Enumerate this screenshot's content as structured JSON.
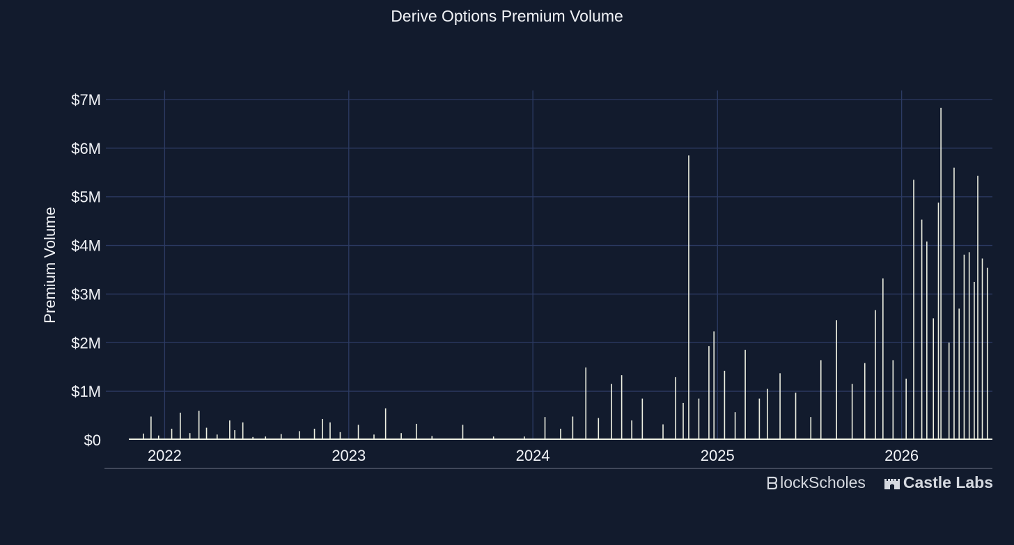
{
  "chart_data": {
    "type": "bar",
    "title": "Derive Options Premium Volume",
    "xlabel": "",
    "ylabel": "Premium Volume",
    "xlim": [
      "2021-10-22",
      "2026-06-30"
    ],
    "ylim": [
      0,
      7200000
    ],
    "yticks": [
      0,
      1000000,
      2000000,
      3000000,
      4000000,
      5000000,
      6000000,
      7000000
    ],
    "ytick_labels": [
      "$0",
      "$1M",
      "$2M",
      "$3M",
      "$4M",
      "$5M",
      "$6M",
      "$7M"
    ],
    "xticks": [
      "2022-01-01",
      "2023-01-01",
      "2024-01-01",
      "2025-01-01",
      "2026-01-01"
    ],
    "xtick_labels": [
      "2022",
      "2023",
      "2024",
      "2025",
      "2026"
    ],
    "grid": true,
    "bar_color": "#eef0e2",
    "series": [
      {
        "values": [
          [
            "2021-11-20",
            130000
          ],
          [
            "2021-12-05",
            480000
          ],
          [
            "2021-12-20",
            90000
          ],
          [
            "2022-01-15",
            230000
          ],
          [
            "2022-02-01",
            560000
          ],
          [
            "2022-02-20",
            140000
          ],
          [
            "2022-03-10",
            600000
          ],
          [
            "2022-03-25",
            250000
          ],
          [
            "2022-04-15",
            110000
          ],
          [
            "2022-05-10",
            400000
          ],
          [
            "2022-05-20",
            200000
          ],
          [
            "2022-06-05",
            360000
          ],
          [
            "2022-06-25",
            60000
          ],
          [
            "2022-07-20",
            70000
          ],
          [
            "2022-08-20",
            120000
          ],
          [
            "2022-09-25",
            180000
          ],
          [
            "2022-10-25",
            230000
          ],
          [
            "2022-11-10",
            430000
          ],
          [
            "2022-11-25",
            360000
          ],
          [
            "2022-12-15",
            160000
          ],
          [
            "2023-01-20",
            310000
          ],
          [
            "2023-02-20",
            110000
          ],
          [
            "2023-03-15",
            650000
          ],
          [
            "2023-04-15",
            140000
          ],
          [
            "2023-05-15",
            330000
          ],
          [
            "2023-06-15",
            80000
          ],
          [
            "2023-08-15",
            310000
          ],
          [
            "2023-10-15",
            70000
          ],
          [
            "2023-12-15",
            70000
          ],
          [
            "2024-01-25",
            470000
          ],
          [
            "2024-02-25",
            230000
          ],
          [
            "2024-03-20",
            480000
          ],
          [
            "2024-04-15",
            1490000
          ],
          [
            "2024-05-10",
            450000
          ],
          [
            "2024-06-05",
            1150000
          ],
          [
            "2024-06-25",
            1330000
          ],
          [
            "2024-07-15",
            400000
          ],
          [
            "2024-08-05",
            850000
          ],
          [
            "2024-09-15",
            320000
          ],
          [
            "2024-10-10",
            1290000
          ],
          [
            "2024-10-25",
            760000
          ],
          [
            "2024-11-05",
            5850000
          ],
          [
            "2024-11-25",
            850000
          ],
          [
            "2024-12-15",
            1930000
          ],
          [
            "2024-12-25",
            2230000
          ],
          [
            "2025-01-15",
            1420000
          ],
          [
            "2025-02-05",
            570000
          ],
          [
            "2025-02-25",
            1850000
          ],
          [
            "2025-03-25",
            850000
          ],
          [
            "2025-04-10",
            1050000
          ],
          [
            "2025-05-05",
            1370000
          ],
          [
            "2025-06-05",
            970000
          ],
          [
            "2025-07-05",
            470000
          ],
          [
            "2025-07-25",
            1640000
          ],
          [
            "2025-08-25",
            2460000
          ],
          [
            "2025-09-25",
            1150000
          ],
          [
            "2025-10-20",
            1580000
          ],
          [
            "2025-11-10",
            2670000
          ],
          [
            "2025-11-25",
            3320000
          ],
          [
            "2025-12-15",
            1640000
          ],
          [
            "2026-01-10",
            1260000
          ],
          [
            "2026-01-25",
            5350000
          ],
          [
            "2026-02-10",
            4530000
          ],
          [
            "2026-02-20",
            4080000
          ],
          [
            "2026-03-05",
            2500000
          ],
          [
            "2026-03-15",
            4880000
          ],
          [
            "2026-03-20",
            6830000
          ],
          [
            "2026-04-05",
            2000000
          ],
          [
            "2026-04-15",
            5600000
          ],
          [
            "2026-04-25",
            2700000
          ],
          [
            "2026-05-05",
            3810000
          ],
          [
            "2026-05-15",
            3860000
          ],
          [
            "2026-05-25",
            3250000
          ],
          [
            "2026-06-01",
            5430000
          ],
          [
            "2026-06-10",
            3730000
          ],
          [
            "2026-06-20",
            3540000
          ]
        ]
      }
    ]
  }
}
